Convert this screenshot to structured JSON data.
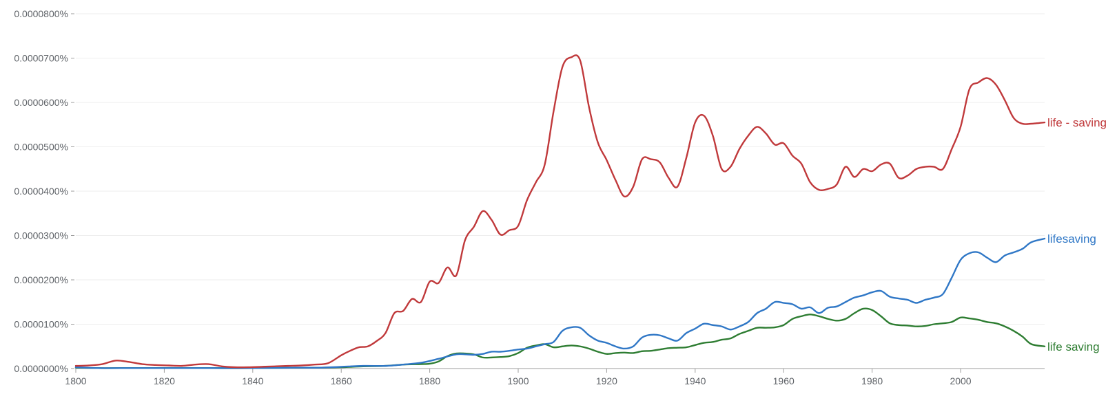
{
  "chart_data": {
    "type": "line",
    "title": "",
    "xlabel": "",
    "ylabel": "",
    "xlim": [
      1800,
      2019
    ],
    "ylim": [
      0,
      8e-05
    ],
    "x_ticks": [
      1800,
      1820,
      1840,
      1860,
      1880,
      1900,
      1920,
      1940,
      1960,
      1980,
      2000
    ],
    "x_tick_labels": [
      "1800",
      "1820",
      "1840",
      "1860",
      "1880",
      "1900",
      "1920",
      "1940",
      "1960",
      "1980",
      "2000"
    ],
    "y_ticks": [
      0,
      1e-05,
      2e-05,
      3e-05,
      4e-05,
      5e-05,
      6e-05,
      7e-05,
      8e-05
    ],
    "y_tick_labels": [
      "0.0000000%",
      "0.0000100%",
      "0.0000200%",
      "0.0000300%",
      "0.0000400%",
      "0.0000500%",
      "0.0000600%",
      "0.0000700%",
      "0.0000800%"
    ],
    "grid": true,
    "legend": "inline-right",
    "series": [
      {
        "name": "life - saving",
        "color": "#c0393b",
        "x": [
          1800,
          1803,
          1806,
          1809,
          1812,
          1815,
          1818,
          1821,
          1824,
          1827,
          1830,
          1833,
          1836,
          1839,
          1842,
          1845,
          1848,
          1851,
          1854,
          1857,
          1860,
          1862,
          1864,
          1866,
          1868,
          1870,
          1872,
          1874,
          1876,
          1878,
          1880,
          1882,
          1884,
          1886,
          1888,
          1890,
          1892,
          1894,
          1896,
          1898,
          1900,
          1902,
          1904,
          1906,
          1908,
          1910,
          1912,
          1914,
          1916,
          1918,
          1920,
          1922,
          1924,
          1926,
          1928,
          1930,
          1932,
          1934,
          1936,
          1938,
          1940,
          1942,
          1944,
          1946,
          1948,
          1950,
          1952,
          1954,
          1956,
          1958,
          1960,
          1962,
          1964,
          1966,
          1968,
          1970,
          1972,
          1974,
          1976,
          1978,
          1980,
          1982,
          1984,
          1986,
          1988,
          1990,
          1992,
          1994,
          1996,
          1998,
          2000,
          2002,
          2004,
          2006,
          2008,
          2010,
          2012,
          2014,
          2016,
          2019
        ],
        "values": [
          6e-07,
          7e-07,
          1e-06,
          1.8e-06,
          1.5e-06,
          1e-06,
          8e-07,
          7e-07,
          6e-07,
          9e-07,
          1e-06,
          5e-07,
          3e-07,
          3e-07,
          4e-07,
          5e-07,
          6e-07,
          7e-07,
          9e-07,
          1.2e-06,
          3e-06,
          4e-06,
          4.8e-06,
          5e-06,
          6.2e-06,
          8e-06,
          1.25e-05,
          1.3e-05,
          1.57e-05,
          1.5e-05,
          1.96e-05,
          1.93e-05,
          2.28e-05,
          2.1e-05,
          2.9e-05,
          3.2e-05,
          3.55e-05,
          3.35e-05,
          3.02e-05,
          3.12e-05,
          3.22e-05,
          3.8e-05,
          4.2e-05,
          4.6e-05,
          5.8e-05,
          6.8e-05,
          7.02e-05,
          6.95e-05,
          5.9e-05,
          5.1e-05,
          4.7e-05,
          4.25e-05,
          3.88e-05,
          4.1e-05,
          4.72e-05,
          4.72e-05,
          4.65e-05,
          4.3e-05,
          4.1e-05,
          4.75e-05,
          5.55e-05,
          5.7e-05,
          5.25e-05,
          4.5e-05,
          4.55e-05,
          4.95e-05,
          5.25e-05,
          5.45e-05,
          5.3e-05,
          5.05e-05,
          5.08e-05,
          4.8e-05,
          4.62e-05,
          4.2e-05,
          4.03e-05,
          4.05e-05,
          4.15e-05,
          4.55e-05,
          4.32e-05,
          4.5e-05,
          4.45e-05,
          4.6e-05,
          4.62e-05,
          4.3e-05,
          4.35e-05,
          4.5e-05,
          4.55e-05,
          4.55e-05,
          4.5e-05,
          4.95e-05,
          5.45e-05,
          6.3e-05,
          6.45e-05,
          6.55e-05,
          6.4e-05,
          6.05e-05,
          5.65e-05,
          5.52e-05,
          5.52e-05,
          5.55e-05
        ]
      },
      {
        "name": "lifesaving",
        "color": "#2f77c6",
        "x": [
          1800,
          1805,
          1810,
          1820,
          1830,
          1840,
          1850,
          1855,
          1860,
          1865,
          1870,
          1874,
          1878,
          1882,
          1886,
          1888,
          1890,
          1892,
          1894,
          1896,
          1898,
          1900,
          1902,
          1904,
          1906,
          1908,
          1910,
          1912,
          1914,
          1916,
          1918,
          1920,
          1922,
          1924,
          1926,
          1928,
          1930,
          1932,
          1934,
          1936,
          1938,
          1940,
          1942,
          1944,
          1946,
          1948,
          1950,
          1952,
          1954,
          1956,
          1958,
          1960,
          1962,
          1964,
          1966,
          1968,
          1970,
          1972,
          1974,
          1976,
          1978,
          1980,
          1982,
          1984,
          1986,
          1988,
          1990,
          1992,
          1994,
          1996,
          1998,
          2000,
          2002,
          2004,
          2006,
          2008,
          2010,
          2012,
          2014,
          2016,
          2019
        ],
        "values": [
          3e-07,
          1e-07,
          1e-07,
          1e-07,
          1e-07,
          1e-07,
          2e-07,
          2e-07,
          4e-07,
          6e-07,
          6e-07,
          9e-07,
          1.3e-06,
          2.2e-06,
          3.2e-06,
          3.2e-06,
          3.1e-06,
          3.3e-06,
          3.8e-06,
          3.8e-06,
          4e-06,
          4.3e-06,
          4.5e-06,
          5e-06,
          5.5e-06,
          6e-06,
          8.5e-06,
          9.3e-06,
          9.2e-06,
          7.5e-06,
          6.3e-06,
          5.8e-06,
          5e-06,
          4.5e-06,
          5e-06,
          7e-06,
          7.6e-06,
          7.5e-06,
          6.8e-06,
          6.3e-06,
          8e-06,
          9e-06,
          1.01e-05,
          9.8e-06,
          9.5e-06,
          8.8e-06,
          9.5e-06,
          1.05e-05,
          1.25e-05,
          1.35e-05,
          1.5e-05,
          1.48e-05,
          1.45e-05,
          1.35e-05,
          1.38e-05,
          1.25e-05,
          1.37e-05,
          1.4e-05,
          1.5e-05,
          1.6e-05,
          1.65e-05,
          1.72e-05,
          1.75e-05,
          1.62e-05,
          1.58e-05,
          1.55e-05,
          1.48e-05,
          1.55e-05,
          1.6e-05,
          1.68e-05,
          2.05e-05,
          2.45e-05,
          2.6e-05,
          2.62e-05,
          2.5e-05,
          2.4e-05,
          2.55e-05,
          2.62e-05,
          2.7e-05,
          2.85e-05,
          2.93e-05
        ]
      },
      {
        "name": "life saving",
        "color": "#2e7d32",
        "x": [
          1800,
          1805,
          1810,
          1820,
          1830,
          1840,
          1850,
          1855,
          1860,
          1865,
          1870,
          1874,
          1878,
          1880,
          1882,
          1884,
          1886,
          1888,
          1890,
          1892,
          1894,
          1896,
          1898,
          1900,
          1902,
          1904,
          1906,
          1908,
          1910,
          1912,
          1914,
          1916,
          1918,
          1920,
          1922,
          1924,
          1926,
          1928,
          1930,
          1932,
          1934,
          1936,
          1938,
          1940,
          1942,
          1944,
          1946,
          1948,
          1950,
          1952,
          1954,
          1956,
          1958,
          1960,
          1962,
          1964,
          1966,
          1968,
          1970,
          1972,
          1974,
          1976,
          1978,
          1980,
          1982,
          1984,
          1986,
          1988,
          1990,
          1992,
          1994,
          1996,
          1998,
          2000,
          2002,
          2004,
          2006,
          2008,
          2010,
          2012,
          2014,
          2016,
          2019
        ],
        "values": [
          2e-07,
          1e-07,
          1e-07,
          1e-07,
          1e-07,
          1e-07,
          2e-07,
          2e-07,
          3e-07,
          5e-07,
          6e-07,
          9e-07,
          1e-06,
          1.1e-06,
          1.6e-06,
          2.8e-06,
          3.4e-06,
          3.4e-06,
          3.2e-06,
          2.5e-06,
          2.5e-06,
          2.6e-06,
          2.8e-06,
          3.5e-06,
          4.7e-06,
          5.2e-06,
          5.5e-06,
          4.8e-06,
          5e-06,
          5.2e-06,
          5e-06,
          4.5e-06,
          3.8e-06,
          3.3e-06,
          3.5e-06,
          3.6e-06,
          3.5e-06,
          3.9e-06,
          4e-06,
          4.3e-06,
          4.6e-06,
          4.7e-06,
          4.8e-06,
          5.3e-06,
          5.8e-06,
          6e-06,
          6.5e-06,
          6.8e-06,
          7.8e-06,
          8.5e-06,
          9.2e-06,
          9.2e-06,
          9.3e-06,
          9.8e-06,
          1.12e-05,
          1.18e-05,
          1.22e-05,
          1.18e-05,
          1.12e-05,
          1.08e-05,
          1.12e-05,
          1.25e-05,
          1.35e-05,
          1.32e-05,
          1.18e-05,
          1.02e-05,
          9.8e-06,
          9.7e-06,
          9.5e-06,
          9.6e-06,
          1e-05,
          1.02e-05,
          1.05e-05,
          1.15e-05,
          1.13e-05,
          1.1e-05,
          1.05e-05,
          1.02e-05,
          9.5e-06,
          8.5e-06,
          7.2e-06,
          5.5e-06,
          5e-06
        ]
      }
    ]
  }
}
